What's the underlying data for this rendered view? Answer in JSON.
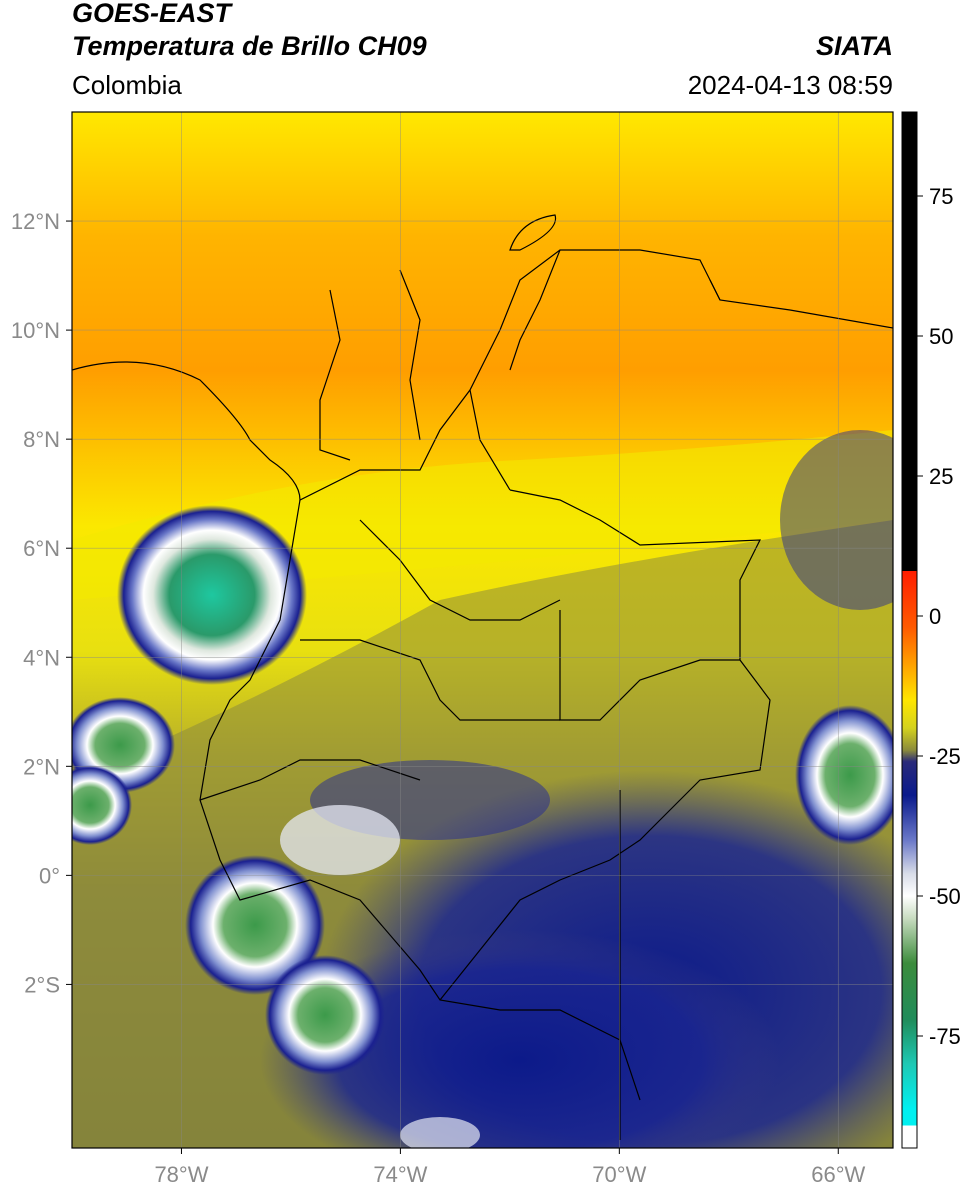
{
  "header": {
    "satellite": "GOES-EAST",
    "product": "Temperatura de Brillo CH09",
    "brand": "SIATA",
    "region": "Colombia",
    "timestamp": "2024-04-13 08:59"
  },
  "map": {
    "lat_ticks": [
      {
        "value": 12,
        "label": "12°N"
      },
      {
        "value": 10,
        "label": "10°N"
      },
      {
        "value": 8,
        "label": "8°N"
      },
      {
        "value": 6,
        "label": "6°N"
      },
      {
        "value": 4,
        "label": "4°N"
      },
      {
        "value": 2,
        "label": "2°N"
      },
      {
        "value": 0,
        "label": "0°"
      },
      {
        "value": -2,
        "label": "2°S"
      }
    ],
    "lon_ticks": [
      {
        "value": -78,
        "label": "78°W"
      },
      {
        "value": -74,
        "label": "74°W"
      },
      {
        "value": -70,
        "label": "70°W"
      },
      {
        "value": -66,
        "label": "66°W"
      }
    ],
    "lon_range": [
      -80.0,
      -65.0
    ],
    "lat_range": [
      -5.0,
      14.0
    ],
    "grid": true
  },
  "colorbar": {
    "ticks": [
      {
        "value": 75,
        "label": "75"
      },
      {
        "value": 50,
        "label": "50"
      },
      {
        "value": 25,
        "label": "25"
      },
      {
        "value": 0,
        "label": "0"
      },
      {
        "value": -25,
        "label": "-25"
      },
      {
        "value": -50,
        "label": "-50"
      },
      {
        "value": -75,
        "label": "-75"
      }
    ],
    "range": [
      -95,
      90
    ],
    "stops": [
      {
        "value": 90,
        "color": "#000000"
      },
      {
        "value": 8,
        "color": "#000000"
      },
      {
        "value": 8,
        "color": "#ff1e00"
      },
      {
        "value": -2,
        "color": "#ff5a00"
      },
      {
        "value": -8,
        "color": "#ff9a00"
      },
      {
        "value": -15,
        "color": "#ffe600"
      },
      {
        "value": -20,
        "color": "#d4d21e"
      },
      {
        "value": -24,
        "color": "#8a8a3c"
      },
      {
        "value": -26,
        "color": "#2a2a7a"
      },
      {
        "value": -32,
        "color": "#0a1a8c"
      },
      {
        "value": -40,
        "color": "#6a78c8"
      },
      {
        "value": -46,
        "color": "#d8dce8"
      },
      {
        "value": -50,
        "color": "#ffffff"
      },
      {
        "value": -54,
        "color": "#c8dcc0"
      },
      {
        "value": -62,
        "color": "#3c8c3c"
      },
      {
        "value": -72,
        "color": "#208c5a"
      },
      {
        "value": -80,
        "color": "#1ec8b4"
      },
      {
        "value": -88,
        "color": "#00f0f0"
      },
      {
        "value": -91,
        "color": "#00f0f0"
      },
      {
        "value": -91,
        "color": "#ffffff"
      },
      {
        "value": -95,
        "color": "#ffffff"
      }
    ]
  }
}
